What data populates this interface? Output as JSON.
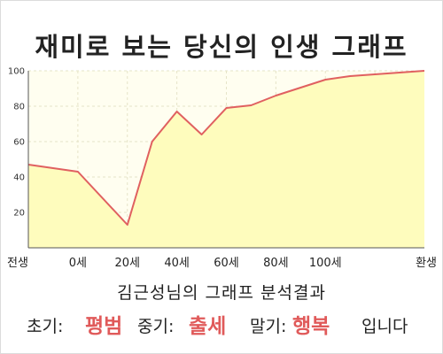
{
  "title": "재미로 보는 당신의 인생 그래프",
  "chart_data": {
    "type": "area",
    "x_ticks": [
      "전생",
      "0세",
      "20세",
      "40세",
      "60세",
      "80세",
      "100세",
      "환생"
    ],
    "y_ticks": [
      20,
      40,
      60,
      80,
      100
    ],
    "ylim": [
      0,
      100
    ],
    "grid": true,
    "series": [
      {
        "x": [
          -1,
          0,
          1,
          1.5,
          2,
          2.5,
          3,
          3.5,
          4,
          4.5,
          5,
          5.5,
          6,
          7
        ],
        "y": [
          47,
          43,
          13,
          60,
          77,
          64,
          79,
          80.5,
          86,
          90.5,
          95,
          97,
          98,
          100
        ]
      }
    ],
    "colors": {
      "line": "#e06060",
      "fill": "#fefcbd",
      "plot_bg": "#fffef0",
      "grid": "#e6e4c8"
    }
  },
  "result": {
    "title": "김근성님의 그래프 분석결과",
    "early_label": "초기:",
    "early_value": "평범",
    "middle_label": "중기:",
    "middle_value": "출세",
    "late_label": "말기:",
    "late_value": "행복",
    "ending": "입니다"
  }
}
